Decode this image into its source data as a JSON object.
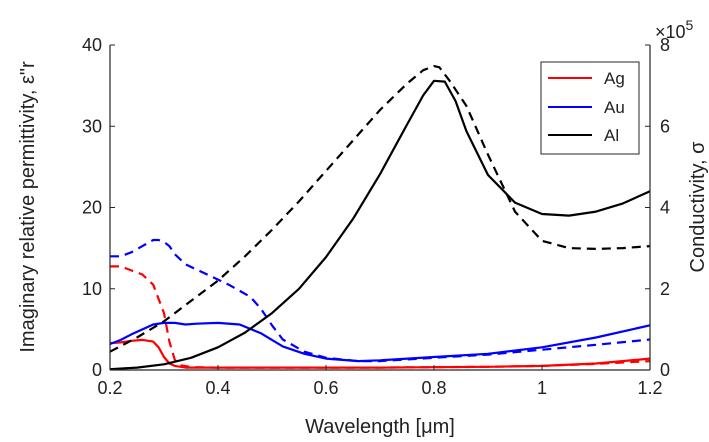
{
  "chart_data": {
    "type": "line",
    "xlabel": "Wavelength [μm]",
    "ylabel_left": "Imaginary relative permittivity, ε\"r",
    "ylabel_right": "Conductivity, σ",
    "right_multiplier": "×10",
    "right_multiplier_exp": "5",
    "xlim": [
      0.2,
      1.2
    ],
    "ylim_left": [
      0,
      40
    ],
    "ylim_right": [
      0,
      8
    ],
    "xticks": [
      "0.2",
      "0.4",
      "0.6",
      "0.8",
      "1",
      "1.2"
    ],
    "xtick_values": [
      0.2,
      0.4,
      0.6,
      0.8,
      1.0,
      1.2
    ],
    "yticks_left": [
      "0",
      "10",
      "20",
      "30",
      "40"
    ],
    "ytick_left_values": [
      0,
      10,
      20,
      30,
      40
    ],
    "yticks_right": [
      "0",
      "2",
      "4",
      "6",
      "8"
    ],
    "ytick_right_values": [
      0,
      2,
      4,
      6,
      8
    ],
    "legend_position": "top-right",
    "line_styles": {
      "solid": "imaginary relative permittivity (left axis)",
      "dashed": "conductivity (right axis)"
    },
    "series": [
      {
        "name": "Ag",
        "color": "#ff0000",
        "permittivity": {
          "x": [
            0.2,
            0.22,
            0.24,
            0.26,
            0.28,
            0.29,
            0.3,
            0.31,
            0.32,
            0.34,
            0.4,
            0.5,
            0.6,
            0.7,
            0.8,
            0.9,
            1.0,
            1.1,
            1.2
          ],
          "y": [
            3.3,
            3.4,
            3.6,
            3.7,
            3.5,
            2.8,
            1.6,
            0.8,
            0.5,
            0.3,
            0.3,
            0.3,
            0.3,
            0.3,
            0.35,
            0.4,
            0.5,
            0.8,
            1.4
          ]
        },
        "conductivity": {
          "x": [
            0.2,
            0.22,
            0.24,
            0.26,
            0.28,
            0.3,
            0.31,
            0.32,
            0.33,
            0.35,
            0.4,
            0.5,
            0.6,
            0.7,
            0.8,
            0.9,
            1.0,
            1.1,
            1.2
          ],
          "y": [
            2.55,
            2.55,
            2.45,
            2.35,
            2.1,
            1.4,
            0.7,
            0.25,
            0.12,
            0.07,
            0.06,
            0.06,
            0.06,
            0.06,
            0.07,
            0.08,
            0.1,
            0.15,
            0.22
          ]
        }
      },
      {
        "name": "Au",
        "color": "#0000ff",
        "permittivity": {
          "x": [
            0.2,
            0.22,
            0.24,
            0.26,
            0.28,
            0.3,
            0.32,
            0.34,
            0.36,
            0.4,
            0.44,
            0.48,
            0.52,
            0.56,
            0.6,
            0.66,
            0.7,
            0.8,
            0.9,
            1.0,
            1.1,
            1.2
          ],
          "y": [
            3.2,
            3.7,
            4.4,
            5.0,
            5.6,
            5.8,
            5.8,
            5.6,
            5.7,
            5.8,
            5.6,
            4.5,
            2.9,
            2.0,
            1.4,
            1.1,
            1.2,
            1.6,
            2.0,
            2.8,
            4.0,
            5.5
          ]
        },
        "conductivity": {
          "x": [
            0.2,
            0.22,
            0.24,
            0.26,
            0.28,
            0.29,
            0.3,
            0.31,
            0.32,
            0.34,
            0.38,
            0.42,
            0.46,
            0.48,
            0.5,
            0.52,
            0.56,
            0.6,
            0.66,
            0.7,
            0.8,
            0.9,
            1.0,
            1.1,
            1.2
          ],
          "y": [
            2.8,
            2.8,
            2.9,
            3.05,
            3.2,
            3.2,
            3.15,
            3.05,
            2.85,
            2.6,
            2.35,
            2.1,
            1.8,
            1.5,
            1.1,
            0.75,
            0.45,
            0.3,
            0.22,
            0.22,
            0.3,
            0.38,
            0.5,
            0.62,
            0.75
          ]
        }
      },
      {
        "name": "Al",
        "color": "#000000",
        "permittivity": {
          "x": [
            0.2,
            0.25,
            0.3,
            0.35,
            0.4,
            0.45,
            0.5,
            0.55,
            0.6,
            0.65,
            0.7,
            0.75,
            0.78,
            0.8,
            0.82,
            0.84,
            0.86,
            0.9,
            0.95,
            1.0,
            1.05,
            1.1,
            1.15,
            1.2
          ],
          "y": [
            0.1,
            0.3,
            0.7,
            1.5,
            2.8,
            4.6,
            7.0,
            10.0,
            13.9,
            18.6,
            24.1,
            30.2,
            33.8,
            35.6,
            35.5,
            33.1,
            29.4,
            24.0,
            20.6,
            19.2,
            19.0,
            19.5,
            20.5,
            22.0
          ]
        },
        "conductivity": {
          "x": [
            0.2,
            0.25,
            0.3,
            0.35,
            0.4,
            0.45,
            0.5,
            0.55,
            0.6,
            0.65,
            0.7,
            0.75,
            0.78,
            0.8,
            0.81,
            0.83,
            0.86,
            0.9,
            0.95,
            1.0,
            1.05,
            1.1,
            1.15,
            1.2
          ],
          "y": [
            0.45,
            0.8,
            1.2,
            1.7,
            2.2,
            2.8,
            3.45,
            4.15,
            4.9,
            5.65,
            6.4,
            7.05,
            7.38,
            7.48,
            7.45,
            7.1,
            6.5,
            5.3,
            3.9,
            3.18,
            3.0,
            2.98,
            3.0,
            3.05
          ]
        }
      }
    ]
  }
}
